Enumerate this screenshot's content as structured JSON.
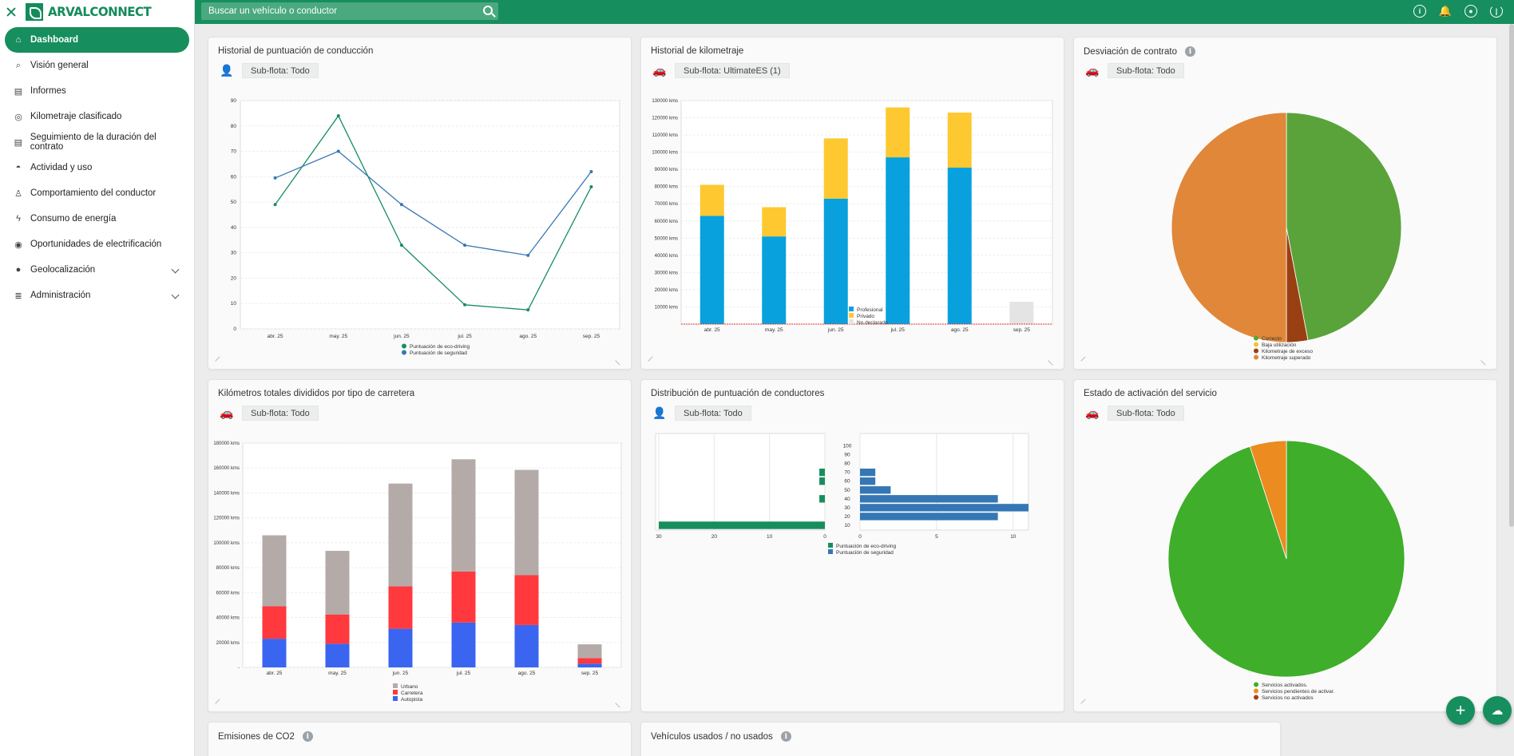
{
  "brand": {
    "name": "ARVALCONNECT"
  },
  "search": {
    "placeholder": "Buscar un vehículo o conductor"
  },
  "sidebar": {
    "items": [
      {
        "label": "Dashboard",
        "icon": "home-icon",
        "active": true
      },
      {
        "label": "Visión general",
        "icon": "search-icon"
      },
      {
        "label": "Informes",
        "icon": "document-icon"
      },
      {
        "label": "Kilometraje clasificado",
        "icon": "gauge-icon"
      },
      {
        "label": "Seguimiento de la duración del contrato",
        "icon": "document-icon"
      },
      {
        "label": "Actividad y uso",
        "icon": "dashboard-icon"
      },
      {
        "label": "Comportamiento del conductor",
        "icon": "trophy-icon"
      },
      {
        "label": "Consumo de energía",
        "icon": "energy-icon"
      },
      {
        "label": "Oportunidades de electrificación",
        "icon": "plug-icon"
      },
      {
        "label": "Geolocalización",
        "icon": "pin-icon",
        "expandable": true
      },
      {
        "label": "Administración",
        "icon": "sliders-icon",
        "expandable": true
      }
    ]
  },
  "cards": {
    "driving": {
      "title": "Historial de puntuación de conducción",
      "subfleet": "Sub-flota: Todo"
    },
    "mileage": {
      "title": "Historial de kilometraje",
      "subfleet": "Sub-flota: UltimateES (1)"
    },
    "contract": {
      "title": "Desviación de contrato",
      "subfleet": "Sub-flota: Todo"
    },
    "road": {
      "title": "Kilómetros totales divididos por tipo de carretera",
      "subfleet": "Sub-flota: Todo"
    },
    "distribution": {
      "title": "Distribución de puntuación de conductores",
      "subfleet": "Sub-flota: Todo"
    },
    "service": {
      "title": "Estado de activación del servicio",
      "subfleet": "Sub-flota: Todo"
    },
    "co2": {
      "title": "Emisiones de CO2"
    },
    "vehicles": {
      "title": "Vehículos usados / no usados"
    }
  },
  "chart_data": [
    {
      "id": "driving",
      "type": "line",
      "categories": [
        "abr. 25",
        "may. 25",
        "jun. 25",
        "jul. 25",
        "ago. 25",
        "sep. 25"
      ],
      "series": [
        {
          "name": "Puntuación de eco-driving",
          "color": "#178e5d",
          "values": [
            49,
            84,
            33,
            9.5,
            7.5,
            56
          ]
        },
        {
          "name": "Puntuación de seguridad",
          "color": "#3577b4",
          "values": [
            59.5,
            70,
            49,
            33,
            29,
            62
          ]
        }
      ],
      "ylim": [
        0,
        90
      ],
      "yticks": [
        "0",
        "10",
        "20",
        "30",
        "40",
        "50",
        "60",
        "70",
        "80",
        "90"
      ]
    },
    {
      "id": "mileage",
      "type": "bar",
      "stacked": true,
      "categories": [
        "abr. 25",
        "may. 25",
        "jun. 25",
        "jul. 25",
        "ago. 25",
        "sep. 25"
      ],
      "series": [
        {
          "name": "Profesional",
          "color": "#09a1dd",
          "values": [
            63000,
            51000,
            73000,
            97000,
            91000,
            0
          ]
        },
        {
          "name": "Privado",
          "color": "#fec831",
          "values": [
            18000,
            17000,
            35000,
            29000,
            32000,
            0
          ]
        },
        {
          "name": "No declarado",
          "color": "#e4e4e4",
          "values": [
            0,
            0,
            0,
            0,
            0,
            13000
          ]
        }
      ],
      "ylim": [
        0,
        130000
      ],
      "yticks": [
        "10000 kms",
        "20000 kms",
        "30000 kms",
        "40000 kms",
        "50000 kms",
        "60000 kms",
        "70000 kms",
        "80000 kms",
        "90000 kms",
        "100000 kms",
        "110000 kms",
        "120000 kms",
        "130000 kms"
      ]
    },
    {
      "id": "contract",
      "type": "pie",
      "categories": [
        "Correcto",
        "Baja utilización",
        "Kilometraje de exceso",
        "Kilometraje superado"
      ],
      "colors": [
        "#5aa33a",
        "#f4c430",
        "#9a3f12",
        "#e0873a"
      ],
      "values": [
        47,
        0,
        3,
        50
      ]
    },
    {
      "id": "road",
      "type": "bar",
      "stacked": true,
      "categories": [
        "abr. 25",
        "may. 25",
        "jun. 25",
        "jul. 25",
        "ago. 25",
        "sep. 25"
      ],
      "series": [
        {
          "name": "Autopista",
          "color": "#3a65f0",
          "values": [
            23000,
            19000,
            31000,
            36000,
            34000,
            3000
          ]
        },
        {
          "name": "Carretera",
          "color": "#ff393d",
          "values": [
            26000,
            23500,
            34000,
            41000,
            40000,
            4500
          ]
        },
        {
          "name": "Urbano",
          "color": "#b4aba9",
          "values": [
            57000,
            51000,
            82500,
            90000,
            84500,
            11000
          ]
        }
      ],
      "legend_order": [
        "Urbano",
        "Carretera",
        "Autopista"
      ],
      "ylim": [
        0,
        180000
      ],
      "yticks": [
        "-",
        "20000 kms",
        "40000 kms",
        "60000 kms",
        "80000 kms",
        "100000 kms",
        "120000 kms",
        "140000 kms",
        "160000 kms",
        "180000 kms"
      ]
    },
    {
      "id": "distribution",
      "type": "bar",
      "orientation": "horizontal",
      "categories": [
        "10",
        "20",
        "30",
        "40",
        "50",
        "60",
        "70",
        "80",
        "90",
        "100"
      ],
      "series": [
        {
          "name": "Puntuación de eco-driving",
          "color": "#178e5d",
          "values": [
            30,
            0,
            0,
            1,
            0,
            1,
            1,
            0,
            0,
            0
          ]
        },
        {
          "name": "Puntuación de seguridad",
          "color": "#3577b4",
          "values": [
            0,
            9,
            11,
            9,
            2,
            1,
            1,
            0,
            0,
            0
          ]
        }
      ],
      "eco_axis": [
        "30",
        "20",
        "10",
        "0"
      ],
      "safety_axis": [
        "0",
        "5",
        "10"
      ]
    },
    {
      "id": "service",
      "type": "pie",
      "categories": [
        "Servicios activados.",
        "Servicios pendientes de activar.",
        "Servicios no activados"
      ],
      "colors": [
        "#3fae2a",
        "#ec8b1f",
        "#a83f10"
      ],
      "values": [
        95,
        5,
        0
      ]
    }
  ]
}
